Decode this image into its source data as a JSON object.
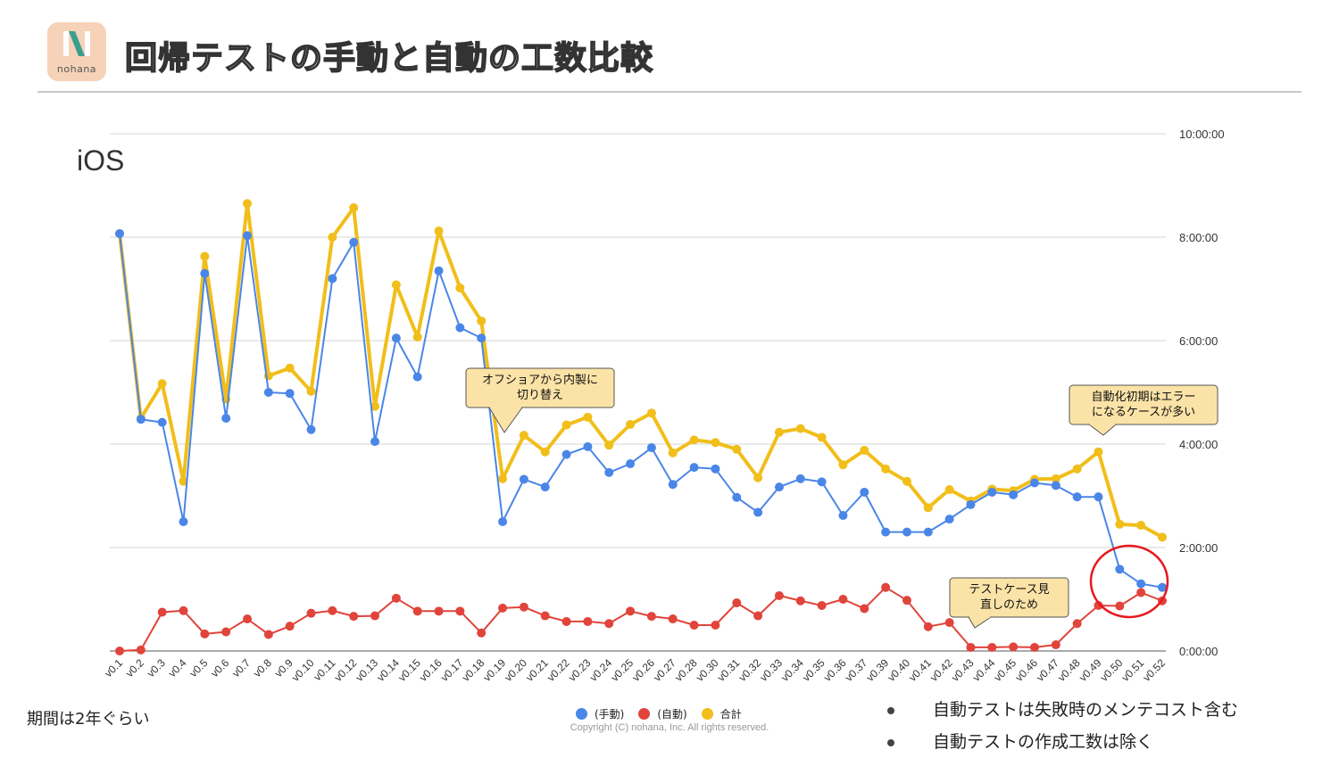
{
  "header": {
    "logo_text": "nohana",
    "title": "回帰テストの手動と自動の工数比較"
  },
  "footer": {
    "period_note": "期間は2年ぐらい",
    "bullets": [
      "自動テストは失敗時のメンテコスト含む",
      "自動テストの作成工数は除く"
    ],
    "copyright": "Copyright (C) nohana, Inc. All rights reserved."
  },
  "colors": {
    "manual": "#4a86e8",
    "auto": "#e0443b",
    "total": "#f1be1a",
    "highlight_circle": "#e8171d",
    "callout_bg": "#fbe3a7"
  },
  "chart_data": {
    "type": "line",
    "title": "iOS",
    "y_unit": "h:mm:ss",
    "ylim": [
      "0:00:00",
      "10:00:00"
    ],
    "ytick_labels": [
      "0:00:00",
      "2:00:00",
      "4:00:00",
      "6:00:00",
      "8:00:00",
      "10:00:00"
    ],
    "ytick_hours": [
      0,
      2,
      4,
      6,
      8,
      10
    ],
    "y_axis_side": "right",
    "grid": true,
    "legend_position": "bottom",
    "categories": [
      "v0.1",
      "v0.2",
      "v0.3",
      "v0.4",
      "v0.5",
      "v0.6",
      "v0.7",
      "v0.8",
      "v0.9",
      "v0.10",
      "v0.11",
      "v0.12",
      "v0.13",
      "v0.14",
      "v0.15",
      "v0.16",
      "v0.17",
      "v0.18",
      "v0.19",
      "v0.20",
      "v0.21",
      "v0.22",
      "v0.23",
      "v0.24",
      "v0.25",
      "v0.26",
      "v0.27",
      "v0.28",
      "v0.30",
      "v0.31",
      "v0.32",
      "v0.33",
      "v0.34",
      "v0.35",
      "v0.36",
      "v0.37",
      "v0.39",
      "v0.40",
      "v0.41",
      "v0.42",
      "v0.43",
      "v0.44",
      "v0.45",
      "v0.46",
      "v0.47",
      "v0.48",
      "v0.49",
      "v0.50",
      "v0.51",
      "v0.52"
    ],
    "series": [
      {
        "name": "(手動)",
        "key": "manual",
        "unit": "hours",
        "values": [
          8.07,
          4.48,
          4.42,
          2.5,
          7.3,
          4.5,
          8.03,
          5.0,
          4.98,
          4.28,
          7.2,
          7.9,
          4.05,
          6.05,
          5.3,
          7.35,
          6.25,
          6.05,
          2.5,
          3.32,
          3.17,
          3.8,
          3.95,
          3.45,
          3.62,
          3.93,
          3.22,
          3.55,
          3.52,
          2.97,
          2.68,
          3.17,
          3.33,
          3.27,
          2.62,
          3.07,
          2.3,
          2.3,
          2.3,
          2.55,
          2.83,
          3.07,
          3.02,
          3.25,
          3.2,
          2.98,
          2.98,
          1.58,
          1.3,
          1.23
        ]
      },
      {
        "name": "(自動)",
        "key": "auto",
        "unit": "hours",
        "values": [
          0.0,
          0.02,
          0.75,
          0.78,
          0.33,
          0.37,
          0.62,
          0.32,
          0.48,
          0.73,
          0.78,
          0.67,
          0.68,
          1.02,
          0.77,
          0.77,
          0.77,
          0.35,
          0.83,
          0.85,
          0.68,
          0.57,
          0.57,
          0.53,
          0.77,
          0.67,
          0.62,
          0.5,
          0.5,
          0.93,
          0.68,
          1.07,
          0.97,
          0.88,
          1.0,
          0.82,
          1.23,
          0.98,
          0.47,
          0.55,
          0.07,
          0.07,
          0.08,
          0.07,
          0.12,
          0.53,
          0.88,
          0.87,
          1.13,
          0.97
        ]
      },
      {
        "name": "合計",
        "key": "total",
        "unit": "hours",
        "values": [
          8.07,
          4.5,
          5.17,
          3.28,
          7.63,
          4.87,
          8.65,
          5.32,
          5.47,
          5.02,
          8.0,
          8.57,
          4.73,
          7.08,
          6.07,
          8.12,
          7.02,
          6.38,
          3.33,
          4.17,
          3.85,
          4.37,
          4.52,
          3.98,
          4.38,
          4.6,
          3.83,
          4.08,
          4.03,
          3.9,
          3.35,
          4.23,
          4.3,
          4.13,
          3.6,
          3.88,
          3.52,
          3.28,
          2.77,
          3.12,
          2.9,
          3.13,
          3.1,
          3.32,
          3.33,
          3.52,
          3.85,
          2.45,
          2.43,
          2.2
        ]
      }
    ],
    "annotations": [
      {
        "text_lines": [
          "オフショアから内製に",
          "切り替え"
        ]
      },
      {
        "text_lines": [
          "自動化初期はエラー",
          "になるケースが多い"
        ]
      },
      {
        "text_lines": [
          "テストケース見",
          "直しのため"
        ]
      }
    ]
  }
}
